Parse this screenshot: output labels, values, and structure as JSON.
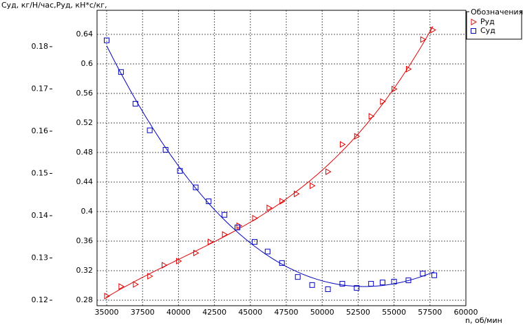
{
  "chart_data": {
    "type": "scatter",
    "title": "Суд, кг/Н/час,Руд, кН*с/кг,",
    "x_label": "n, об/мин",
    "legend_title": "Обозначения",
    "legend": "top-right",
    "grid": true,
    "xlim": [
      34330,
      60000
    ],
    "xticks": [
      35000,
      37500,
      40000,
      42500,
      45000,
      47500,
      50000,
      52500,
      55000,
      57500,
      60000
    ],
    "ylim": [
      0.1187,
      0.1886
    ],
    "yticks": [
      0.12,
      0.13,
      0.14,
      0.15,
      0.16,
      0.17,
      0.18
    ],
    "y2lim": [
      0.2726,
      0.6726
    ],
    "y2ticks": [
      0.28,
      0.32,
      0.36,
      0.4,
      0.44,
      0.48,
      0.52,
      0.56,
      0.6,
      0.64
    ],
    "series": [
      {
        "name": "Руд",
        "color": "#e00000",
        "marker": "triangle",
        "axis": "y2",
        "x": [
          35000,
          36000,
          37000,
          38000,
          39000,
          40000,
          41200,
          42200,
          43200,
          44200,
          45300,
          46300,
          47200,
          48200,
          49300,
          50400,
          51400,
          52400,
          53400,
          54200,
          55000,
          56000,
          57000,
          57700
        ],
        "values": [
          0.2856,
          0.2986,
          0.3014,
          0.3126,
          0.3274,
          0.333,
          0.344,
          0.359,
          0.369,
          0.381,
          0.391,
          0.405,
          0.414,
          0.424,
          0.435,
          0.454,
          0.491,
          0.502,
          0.529,
          0.549,
          0.566,
          0.593,
          0.633,
          0.646
        ]
      },
      {
        "name": "Суд",
        "color": "#0000c0",
        "marker": "square",
        "axis": "y",
        "x": [
          35000,
          36000,
          37000,
          38000,
          39100,
          40100,
          41200,
          42100,
          43200,
          44100,
          45300,
          46200,
          47200,
          48300,
          49300,
          50400,
          51400,
          52400,
          53400,
          54200,
          55000,
          56000,
          57000,
          57800
        ],
        "values": [
          0.1815,
          0.174,
          0.1665,
          0.1602,
          0.1556,
          0.1506,
          0.1467,
          0.1434,
          0.1402,
          0.1372,
          0.1338,
          0.1315,
          0.1288,
          0.1255,
          0.1236,
          0.1226,
          0.1239,
          0.1229,
          0.1239,
          0.1242,
          0.1244,
          0.1247,
          0.1263,
          0.1259
        ]
      }
    ]
  }
}
